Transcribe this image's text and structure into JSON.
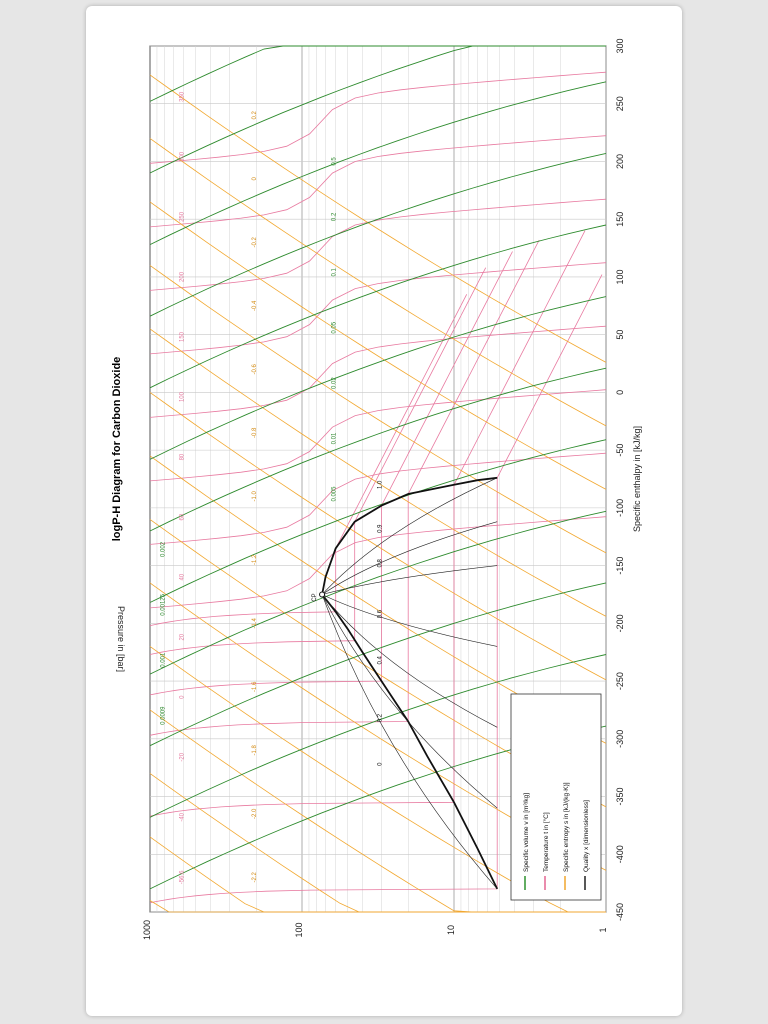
{
  "chart_data": {
    "type": "line",
    "title": "logP-H Diagram for Carbon Dioxide",
    "xlabel": "Specific enthalpy in [kJ/kg]",
    "ylabel": "Pressure in [bar]",
    "xlim": [
      -450,
      300
    ],
    "ylim": [
      1,
      1000
    ],
    "yscale": "log",
    "orientation": "rotated-90-ccw",
    "grid": true,
    "x_ticks": [
      "-450",
      "-400",
      "-350",
      "-300",
      "-250",
      "-200",
      "-150",
      "-100",
      "-50",
      "0",
      "50",
      "100",
      "150",
      "200",
      "250",
      "300"
    ],
    "y_ticks": [
      "1",
      "10",
      "100",
      "1000"
    ],
    "legend_position": "bottom-left",
    "legend": [
      {
        "label": "Specific volume v in [m³/kg]",
        "color": "#1f8a1f"
      },
      {
        "label": "Temperature t in [°C]",
        "color": "#e05a8a"
      },
      {
        "label": "Specific entropy s in [kJ/(kg·K)]",
        "color": "#f0a020"
      },
      {
        "label": "Quality x [dimensionless]",
        "color": "#111111"
      }
    ],
    "critical_point_label": "CP",
    "critical_point": {
      "h": -175,
      "p": 73.8
    },
    "saturation_dome": [
      {
        "h": -430,
        "p": 5.2
      },
      {
        "h": -395,
        "p": 7
      },
      {
        "h": -355,
        "p": 10
      },
      {
        "h": -315,
        "p": 15
      },
      {
        "h": -285,
        "p": 20
      },
      {
        "h": -250,
        "p": 30
      },
      {
        "h": -225,
        "p": 40
      },
      {
        "h": -205,
        "p": 50
      },
      {
        "h": -190,
        "p": 60
      },
      {
        "h": -175,
        "p": 73.8
      },
      {
        "h": -160,
        "p": 70
      },
      {
        "h": -135,
        "p": 60
      },
      {
        "h": -112,
        "p": 45
      },
      {
        "h": -98,
        "p": 30
      },
      {
        "h": -88,
        "p": 20
      },
      {
        "h": -80,
        "p": 10
      },
      {
        "h": -76,
        "p": 7
      },
      {
        "h": -74,
        "p": 5.2
      }
    ],
    "quality_labels": [
      "0",
      "0.2",
      "0.4",
      "0.6",
      "0.8",
      "0.9",
      "1.0"
    ],
    "temperature_labels": [
      "-56.6",
      "-40",
      "-20",
      "0",
      "20",
      "40",
      "60",
      "80",
      "100",
      "150",
      "200",
      "250",
      "300",
      "350"
    ],
    "entropy_labels": [
      "-2.2",
      "-2.0",
      "-1.8",
      "-1.6",
      "-1.4",
      "-1.2",
      "-1.0",
      "-0.8",
      "-0.6",
      "-0.4",
      "-0.2",
      "0",
      "0.2"
    ],
    "volume_labels": [
      "0.0009",
      "0.001",
      "0.00125",
      "0.002",
      "0.005",
      "0.01",
      "0.02",
      "0.05",
      "0.1",
      "0.2",
      "0.5"
    ]
  }
}
